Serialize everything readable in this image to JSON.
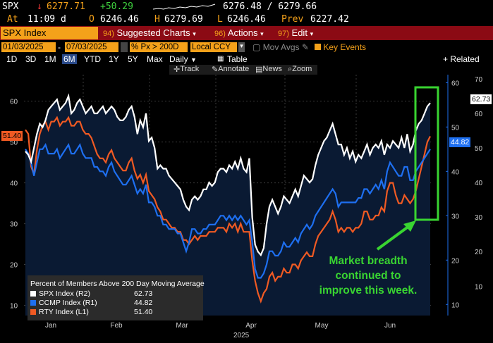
{
  "ticker": {
    "symbol": "SPX",
    "arrow": "↓",
    "last": "6277.71",
    "change": "+50.29",
    "bid_ask": "6276.48 / 6279.66",
    "at_label": "At",
    "time": "11:09 d",
    "open_label": "O",
    "open": "6246.46",
    "high_label": "H",
    "high": "6279.69",
    "low_label": "L",
    "low": "6246.46",
    "prev_label": "Prev",
    "prev": "6227.42"
  },
  "toolbar": {
    "security": "SPX Index",
    "suggested_num": "94)",
    "suggested": "Suggested Charts",
    "actions_num": "96)",
    "actions": "Actions",
    "edit_num": "97)",
    "edit": "Edit"
  },
  "daterow": {
    "start": "01/03/2025",
    "end": "07/03/2025",
    "field": "Px > 200D",
    "ccy": "Local CCY",
    "mov_avgs": "Mov Avgs",
    "key_events": "Key Events"
  },
  "periods": [
    "1D",
    "3D",
    "1M",
    "6M",
    "YTD",
    "1Y",
    "5Y",
    "Max"
  ],
  "active_period": "6M",
  "freq": "Daily",
  "table_label": "Table",
  "related": "+ Related Dat",
  "charttools": {
    "track": "Track",
    "annotate": "Annotate",
    "news": "News",
    "zoom": "Zoom"
  },
  "annotation": [
    "Market breadth",
    "continued to",
    "improve this week."
  ],
  "colors": {
    "spx": "#ffffff",
    "ccmp": "#1e6ff0",
    "rty": "#f05a23",
    "highlight": "#39d431",
    "ticker_orange": "#f4a11a"
  },
  "chart_data": {
    "type": "line",
    "title": "Percent of Members Above 200 Day Moving Average",
    "x_ticks": [
      "Jan",
      "Feb",
      "Mar",
      "Apr",
      "May",
      "Jun"
    ],
    "year_label": "2025",
    "axes": {
      "L1": {
        "ticks": [
          10,
          20,
          30,
          40,
          50,
          60
        ],
        "range": [
          7.5,
          66.5
        ]
      },
      "R1": {
        "ticks": [
          10,
          20,
          30,
          40,
          50,
          60
        ],
        "range": [
          7.5,
          61.8
        ]
      },
      "R2": {
        "ticks": [
          10,
          20,
          30,
          40,
          50,
          60,
          70
        ],
        "range": [
          1.5,
          71.2
        ]
      }
    },
    "series": [
      {
        "name": "SPX Index (R2)",
        "axis": "R2",
        "last": "62.73",
        "color": "#ffffff",
        "values": [
          49,
          48,
          46,
          50,
          54,
          57,
          56,
          58,
          61,
          62,
          63,
          64,
          61,
          62,
          63,
          65,
          60,
          61,
          63,
          64,
          62,
          60,
          61,
          62,
          60,
          60,
          61,
          62,
          60,
          61,
          62,
          61,
          59,
          58,
          58,
          59,
          61,
          62,
          59,
          54,
          58,
          56,
          60,
          52,
          53,
          50,
          44,
          45,
          44,
          44,
          42,
          41,
          40,
          39,
          38,
          35,
          33,
          32,
          35,
          36,
          35,
          36,
          38,
          38,
          40,
          39,
          40,
          43,
          44,
          44,
          43,
          45,
          44,
          46,
          44,
          47,
          44,
          43,
          47,
          30,
          22,
          20,
          19,
          21,
          28,
          33,
          35,
          33,
          31,
          33,
          36,
          35,
          34,
          36,
          38,
          36,
          39,
          42,
          41,
          40,
          41,
          45,
          48,
          50,
          52,
          53,
          55,
          57,
          54,
          51,
          51,
          48,
          50,
          47,
          49,
          46,
          48,
          47,
          49,
          51,
          48,
          50,
          51,
          50,
          52,
          48,
          51,
          50,
          52,
          51,
          50,
          53,
          50,
          54,
          49,
          51,
          55,
          57,
          58,
          60,
          62,
          63
        ]
      },
      {
        "name": "CCMP Index (R1)",
        "axis": "R1",
        "last": "44.82",
        "color": "#1e6ff0",
        "values": [
          45,
          44,
          42,
          39,
          42,
          45,
          45,
          46,
          44,
          44,
          44,
          45,
          43,
          44,
          45,
          46,
          44,
          44,
          45,
          46,
          44,
          43,
          43,
          43,
          41,
          41,
          40,
          40,
          39,
          41,
          42,
          40,
          39,
          38,
          37,
          37,
          38,
          39,
          37,
          35,
          36,
          35,
          37,
          33,
          33,
          32,
          30,
          30,
          28,
          28,
          27,
          27,
          27,
          26,
          26,
          24,
          22,
          24,
          27,
          27,
          26,
          26,
          27,
          27,
          28,
          28,
          28,
          29,
          30,
          30,
          29,
          30,
          29,
          30,
          29,
          30,
          29,
          28,
          29,
          24,
          18,
          16,
          16,
          17,
          19,
          22,
          22,
          21,
          21,
          22,
          24,
          23,
          23,
          24,
          25,
          24,
          26,
          27,
          28,
          27,
          28,
          30,
          31,
          32,
          33,
          34,
          35,
          36,
          35,
          32,
          33,
          33,
          33,
          33,
          33,
          33,
          34,
          34,
          36,
          36,
          35,
          36,
          37,
          36,
          38,
          36,
          40,
          42,
          41,
          40,
          39,
          39,
          41,
          41,
          38,
          38,
          40,
          41,
          42,
          43,
          44,
          45
        ]
      },
      {
        "name": "RTY Index (L1)",
        "axis": "L1",
        "last": "51.40",
        "color": "#f05a23",
        "values": [
          53,
          52,
          44,
          42,
          48,
          52,
          54,
          55,
          53,
          55,
          55,
          56,
          54,
          55,
          55,
          56,
          54,
          54,
          55,
          55,
          53,
          52,
          52,
          51,
          49,
          47,
          46,
          46,
          45,
          47,
          48,
          46,
          45,
          44,
          43,
          43,
          45,
          46,
          43,
          41,
          42,
          40,
          42,
          38,
          37,
          36,
          34,
          33,
          31,
          31,
          30,
          29,
          29,
          28,
          28,
          26,
          26,
          25,
          26,
          27,
          26,
          27,
          27,
          27,
          28,
          28,
          28,
          29,
          29,
          29,
          28,
          30,
          29,
          30,
          28,
          30,
          28,
          28,
          28,
          21,
          16,
          13,
          11,
          13,
          14,
          17,
          18,
          16,
          17,
          17,
          19,
          18,
          18,
          20,
          20,
          19,
          21,
          22,
          23,
          22,
          22,
          25,
          27,
          28,
          29,
          30,
          31,
          33,
          31,
          28,
          29,
          28,
          29,
          29,
          28,
          29,
          29,
          30,
          33,
          33,
          31,
          31,
          32,
          32,
          34,
          33,
          38,
          40,
          40,
          37,
          35,
          35,
          37,
          36,
          35,
          36,
          38,
          41,
          44,
          47,
          50,
          51.4
        ]
      }
    ]
  }
}
